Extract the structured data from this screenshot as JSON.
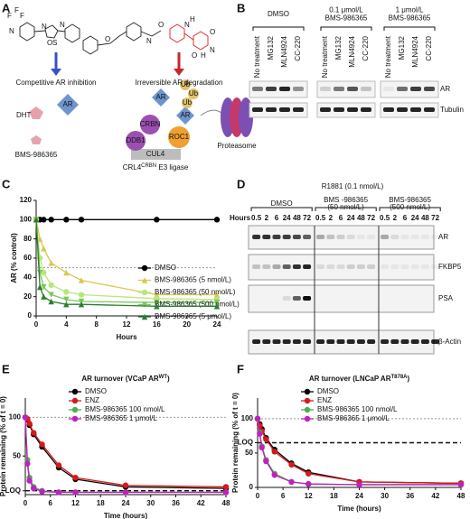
{
  "panels": {
    "A": {
      "letter": "A",
      "left_arrow": "Competitive AR inhibition",
      "right_arrow": "Irreversible AR degradation",
      "ar_left": "AR",
      "dht": "DHT",
      "compound": "BMS-986365",
      "crbn": "CRBN",
      "ddb1": "DDB1",
      "cul4": "CUL4",
      "roc1": "ROC1",
      "ub": [
        "Ub",
        "Ub",
        "Ub"
      ],
      "ar_mid": "AR",
      "ar_right": "AR",
      "proteasome": "Proteasome",
      "ligase": "CRL4",
      "ligase_sup": "CRBN",
      "ligase_end": " E3 ligase",
      "chem_labels": [
        "F",
        "F",
        "F",
        "N",
        "N",
        "S",
        "N",
        "O",
        "O",
        "N",
        "O",
        "N",
        "H",
        "O",
        "N",
        "H",
        "O"
      ]
    },
    "B": {
      "letter": "B",
      "groups": [
        [
          "DMSO"
        ],
        [
          "0.1 μmol/L",
          "BMS-986365"
        ],
        [
          "1 μmol/L",
          "BMS-986365"
        ]
      ],
      "lanes": [
        "No treatment",
        "MG132",
        "MLN4924",
        "CC-220",
        "No treatment",
        "MG132",
        "MLN4924",
        "CC-220",
        "No treatment",
        "MG132",
        "MLN4924",
        "CC-220"
      ],
      "rows": [
        "AR",
        "Tubulin"
      ]
    },
    "D": {
      "letter": "D",
      "title": "R1881 (0.1 nmol/L)",
      "hours_label": "Hours",
      "groups": [
        [
          "DMSO"
        ],
        [
          "BMS -986365",
          "(50 nmol/L)"
        ],
        [
          "BMS-986365",
          "(500 nmol/L)"
        ]
      ],
      "hours": [
        "0.5",
        "2",
        "6",
        "24",
        "48",
        "72",
        "0.5",
        "2",
        "6",
        "24",
        "48",
        "72",
        "0.5",
        "2",
        "6",
        "24",
        "48",
        "72"
      ],
      "rows": [
        "AR",
        "FKBP5",
        "PSA",
        "β-Actin"
      ]
    }
  },
  "chart_data": [
    {
      "type": "line",
      "letter": "C",
      "ylabel": "AR (% control)",
      "xlabel": "Hours",
      "x": [
        0,
        0.5,
        1,
        2,
        4,
        6,
        16,
        24
      ],
      "xlim": [
        0,
        24
      ],
      "ylim": [
        0,
        120
      ],
      "xticks": [
        0,
        4,
        8,
        12,
        16,
        20,
        24
      ],
      "yticks": [
        0,
        20,
        40,
        60,
        80,
        100,
        120
      ],
      "hlines": [
        {
          "value": 50,
          "style": "dotted"
        }
      ],
      "legend": "right",
      "series": [
        {
          "name": "DMSO",
          "color": "#000000",
          "marker": "circle",
          "values": [
            100,
            100,
            100,
            100,
            100,
            100,
            100,
            100
          ]
        },
        {
          "name": "BMS-986365 (5 nmol/L)",
          "color": "#d8c84e",
          "marker": "triangle",
          "values": [
            100,
            80,
            70,
            55,
            45,
            37,
            22,
            22
          ]
        },
        {
          "name": "BMS-986365 (50 nmol/L)",
          "color": "#b8e67c",
          "marker": "circle",
          "values": [
            100,
            60,
            45,
            32,
            25,
            22,
            18,
            17
          ]
        },
        {
          "name": "BMS-986365 (500 nmol/L)",
          "color": "#79c95a",
          "marker": "triangle-down",
          "values": [
            100,
            45,
            30,
            22,
            17,
            15,
            14,
            14
          ]
        },
        {
          "name": "BMS-986365 (5 μmol/L)",
          "color": "#2e7d32",
          "marker": "triangle",
          "values": [
            100,
            30,
            20,
            15,
            12,
            12,
            10,
            10
          ]
        }
      ]
    },
    {
      "type": "line",
      "letter": "E",
      "title": "AR turnover (VCaP AR",
      "title_sup": "WT",
      "title_end": ")",
      "ylabel": "Protein remaining (% of t = 0)",
      "xlabel": "Time (hours)",
      "x": [
        0,
        0.5,
        1,
        2,
        4,
        8,
        12,
        24,
        48
      ],
      "xlim": [
        0,
        48
      ],
      "ylim": [
        0,
        125
      ],
      "xticks": [
        0,
        6,
        12,
        18,
        24,
        30,
        36,
        42,
        48
      ],
      "yticks": [
        {
          "value": 5,
          "label": "LOQ"
        },
        50,
        100
      ],
      "hlines": [
        {
          "value": 100,
          "style": "dotted"
        },
        {
          "value": 5,
          "style": "dashed"
        }
      ],
      "legend": "top",
      "series": [
        {
          "name": "DMSO",
          "color": "#000000",
          "marker": "circle",
          "values": [
            100,
            97,
            90,
            78,
            62,
            35,
            20,
            10,
            8
          ]
        },
        {
          "name": "ENZ",
          "color": "#d7191c",
          "marker": "circle",
          "values": [
            100,
            98,
            92,
            80,
            65,
            38,
            22,
            12,
            10
          ]
        },
        {
          "name": "BMS-986365 100 nmol/L",
          "color": "#4caf50",
          "marker": "circle",
          "values": [
            100,
            45,
            22,
            10,
            5,
            3,
            3,
            3,
            3
          ]
        },
        {
          "name": "BMS-986365 1 μmol/L",
          "color": "#c020c0",
          "marker": "circle",
          "values": [
            100,
            40,
            18,
            8,
            4,
            3,
            3,
            3,
            3
          ]
        }
      ]
    },
    {
      "type": "line",
      "letter": "F",
      "title": "AR turnover (LNCaP AR",
      "title_sup": "T878A",
      "title_end": ")",
      "ylabel": "Protein remaining (% of t = 0)",
      "xlabel": "Time (hours)",
      "x": [
        0,
        0.5,
        1,
        2,
        4,
        8,
        12,
        24,
        48
      ],
      "xlim": [
        0,
        48
      ],
      "ylim": [
        0,
        130
      ],
      "xticks": [
        0,
        6,
        12,
        18,
        24,
        30,
        36,
        42,
        48
      ],
      "yticks": [
        0,
        50,
        {
          "value": 65,
          "label": "LOQ"
        },
        100
      ],
      "hlines": [
        {
          "value": 100,
          "style": "dotted"
        },
        {
          "value": 65,
          "style": "dashed"
        }
      ],
      "legend": "top",
      "series": [
        {
          "name": "DMSO",
          "color": "#000000",
          "marker": "circle",
          "values": [
            100,
            92,
            85,
            72,
            55,
            35,
            22,
            8,
            6
          ]
        },
        {
          "name": "ENZ",
          "color": "#d7191c",
          "marker": "circle",
          "values": [
            100,
            90,
            82,
            70,
            52,
            33,
            20,
            8,
            6
          ]
        },
        {
          "name": "BMS-986365 100 nmol/L",
          "color": "#4caf50",
          "marker": "circle",
          "values": [
            100,
            80,
            60,
            40,
            20,
            8,
            5,
            4,
            4
          ]
        },
        {
          "name": "BMS-986365 1 μmol/L",
          "color": "#c020c0",
          "marker": "circle",
          "values": [
            100,
            78,
            58,
            38,
            18,
            8,
            5,
            4,
            4
          ]
        }
      ]
    }
  ]
}
